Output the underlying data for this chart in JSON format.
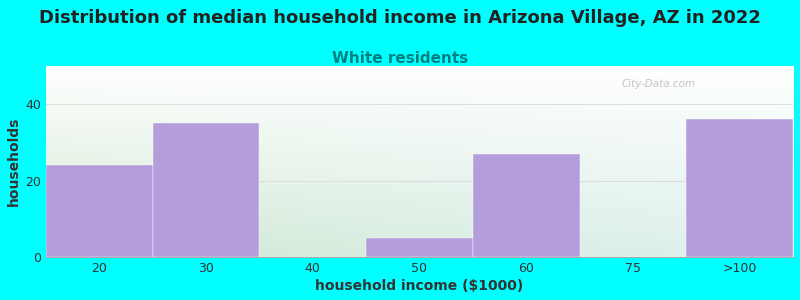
{
  "title": "Distribution of median household income in Arizona Village, AZ in 2022",
  "subtitle": "White residents",
  "xlabel": "household income ($1000)",
  "ylabel": "households",
  "bar_labels": [
    "20",
    "30",
    "40",
    "50",
    "60",
    "75",
    ">100"
  ],
  "bar_values": [
    24,
    35,
    0,
    5,
    27,
    0,
    36
  ],
  "bar_color": "#b39ddb",
  "bar_edge_color": "#b39ddb",
  "background_color": "#00ffff",
  "ylim": [
    0,
    50
  ],
  "yticks": [
    0,
    20,
    40
  ],
  "title_fontsize": 13,
  "subtitle_fontsize": 11,
  "subtitle_color": "#008080",
  "axis_label_fontsize": 10,
  "tick_fontsize": 9,
  "title_color": "#222222",
  "watermark": "City-Data.com",
  "grad_top_left": "#d4edda",
  "grad_top_right": "#ffffff",
  "grad_bottom_left": "#c8e6c9",
  "grad_bottom_right": "#e8f4f8"
}
